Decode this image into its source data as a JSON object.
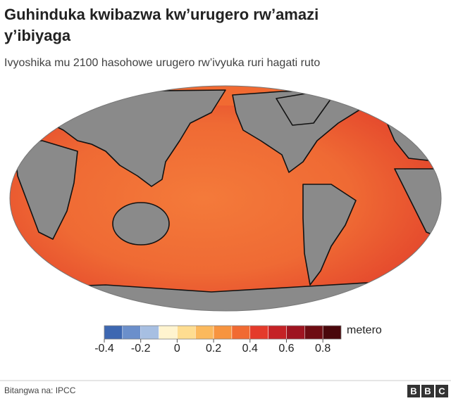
{
  "header": {
    "title": "Guhinduka kwibazwa kw’urugero rw’amazi y’ibiyaga",
    "subtitle": "Ivyoshika mu 2100 hasohowe urugero rw’ivyuka ruri hagati ruto"
  },
  "legend": {
    "bins": [
      -0.4,
      -0.3,
      -0.2,
      -0.1,
      0,
      0.1,
      0.2,
      0.3,
      0.4,
      0.5,
      0.6,
      0.7,
      0.8,
      0.9
    ],
    "colors": [
      "#3d67b1",
      "#6b8fcb",
      "#a7bfe2",
      "#fff4cf",
      "#fedd91",
      "#fbb95d",
      "#f7943f",
      "#f16a32",
      "#e43a2b",
      "#c52226",
      "#9e1420",
      "#6e0c12",
      "#4a070b"
    ],
    "ticks": [
      -0.4,
      -0.2,
      0,
      0.2,
      0.4,
      0.6,
      0.8
    ],
    "unit": "metero"
  },
  "footer": {
    "source": "Bitangwa na: IPCC",
    "logo": [
      "B",
      "B",
      "C"
    ]
  }
}
